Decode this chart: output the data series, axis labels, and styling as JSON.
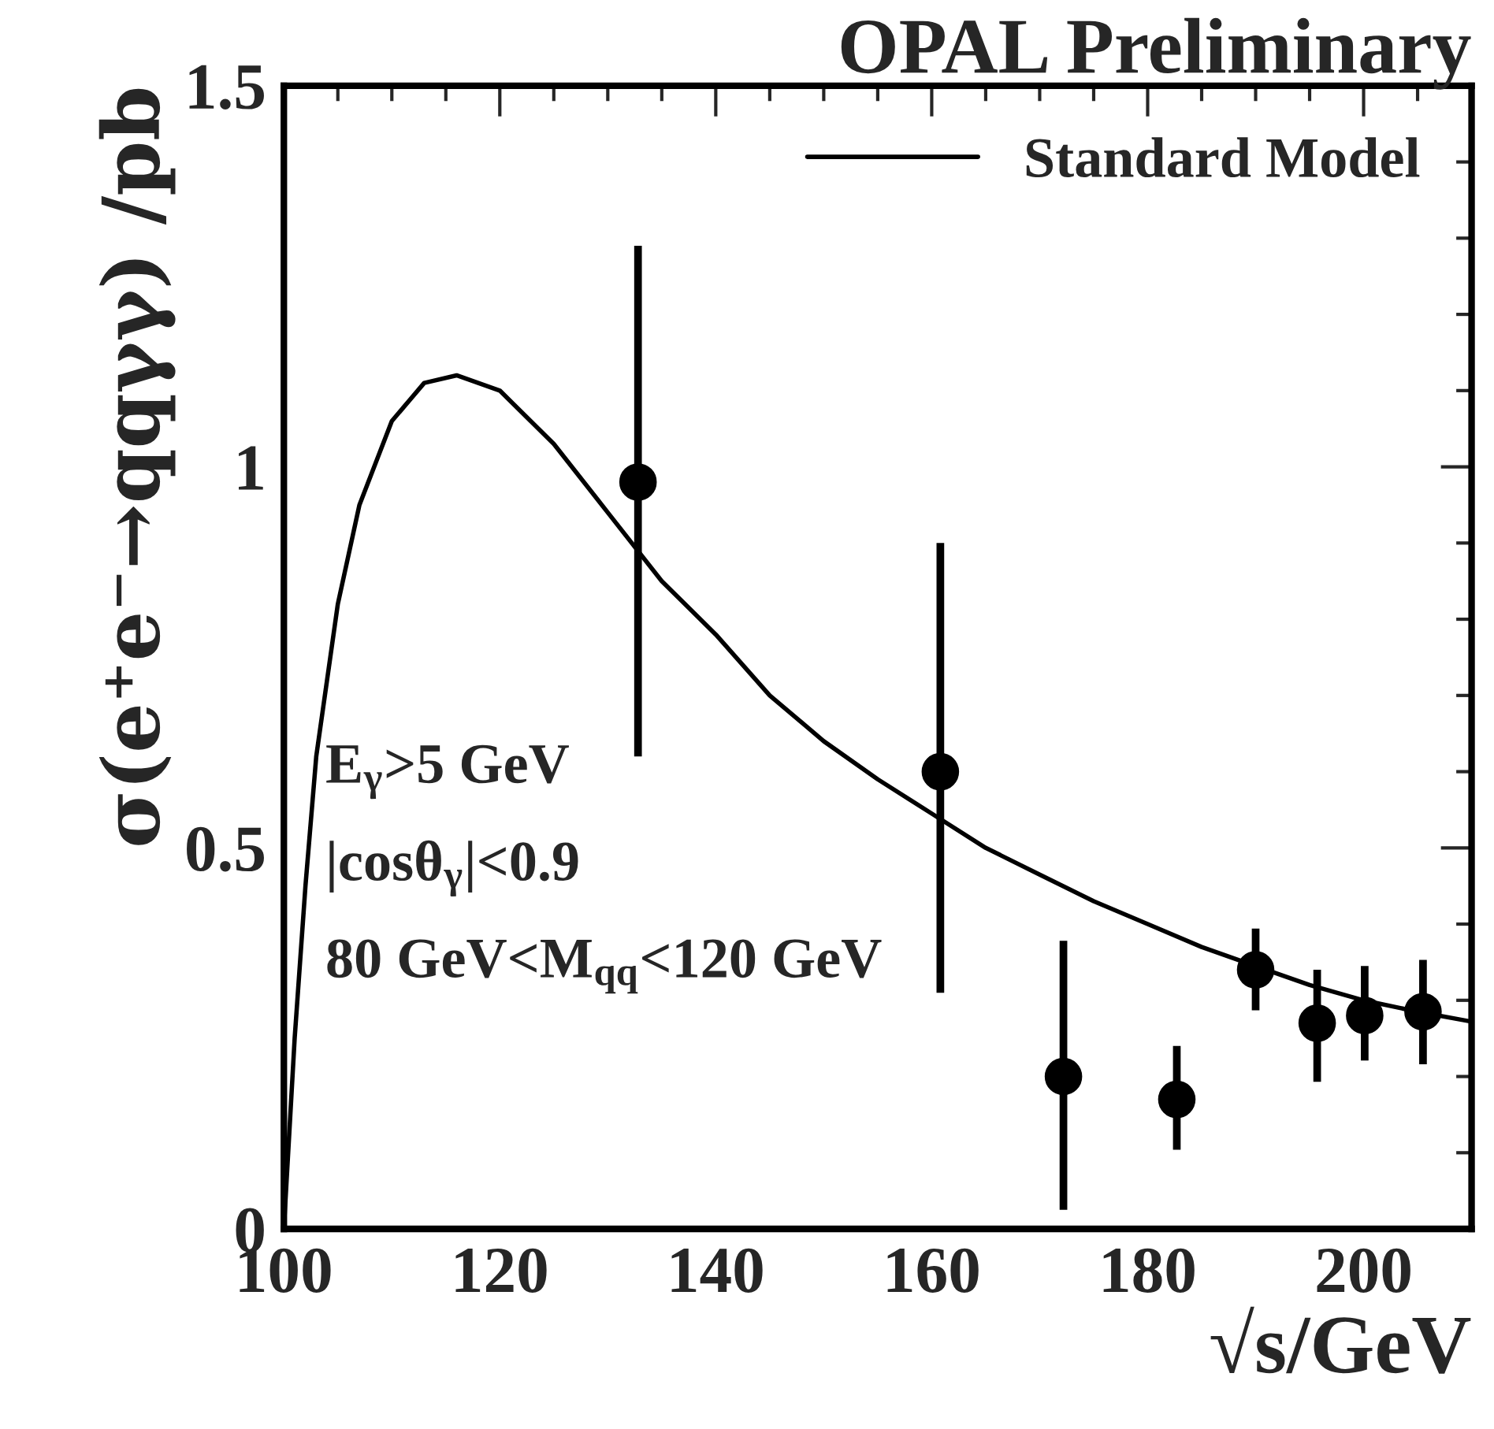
{
  "chart_data": {
    "type": "scatter",
    "title": "OPAL Preliminary",
    "xlabel": "√s/GeV",
    "ylabel": "σ(e⁺e⁻→qqγγ) /pb",
    "xlim": [
      100,
      210
    ],
    "xticks": [
      100,
      120,
      140,
      160,
      180,
      200
    ],
    "ylim": [
      0,
      1.5
    ],
    "yticks": [
      {
        "value": 0,
        "label": "0"
      },
      0.5,
      {
        "value": 1,
        "label": "1"
      },
      1.5
    ],
    "legend": "top right",
    "grid": false,
    "annotations": [
      "E$_{γ}$>5 GeV",
      "|cosθ$_{γ}$|<0.9",
      "80 GeV<M$_{qq}$<120 GeV"
    ],
    "series": [
      {
        "type": "line",
        "name": "Standard Model",
        "color": "#000000",
        "line_style": "solid",
        "x": [
          100,
          101,
          102,
          103,
          105,
          107,
          110,
          113,
          116,
          120,
          125,
          130,
          135,
          140,
          145,
          150,
          155,
          160,
          165,
          170,
          175,
          180,
          185,
          190,
          195,
          200,
          205,
          210
        ],
        "values": [
          0,
          0.25,
          0.45,
          0.62,
          0.82,
          0.95,
          1.06,
          1.11,
          1.12,
          1.1,
          1.03,
          0.94,
          0.85,
          0.78,
          0.7,
          0.64,
          0.59,
          0.545,
          0.5,
          0.465,
          0.43,
          0.4,
          0.37,
          0.345,
          0.32,
          0.3,
          0.285,
          0.272
        ]
      },
      {
        "color": "#000000",
        "marker": "circle",
        "x": [
          132.8,
          160.8,
          172.2,
          182.7,
          190.0,
          195.7,
          200.1,
          205.5
        ],
        "values": [
          0.98,
          0.6,
          0.2,
          0.17,
          0.34,
          0.27,
          0.28,
          0.285
        ],
        "errors": [
          [
            0.62,
            1.29
          ],
          [
            0.31,
            0.9
          ],
          [
            0.025,
            0.378
          ],
          [
            0.104,
            0.24
          ],
          [
            0.287,
            0.394
          ],
          [
            0.193,
            0.34
          ],
          [
            0.221,
            0.345
          ],
          [
            0.216,
            0.353
          ]
        ]
      }
    ]
  }
}
